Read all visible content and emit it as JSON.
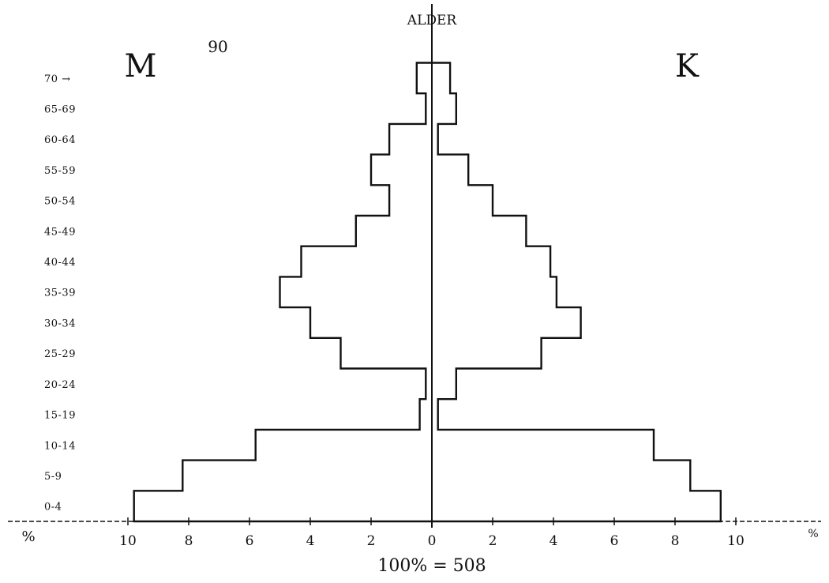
{
  "chart_data": {
    "type": "bar",
    "orientation": "horizontal",
    "title": "90",
    "axis_title": "ALDER",
    "left_label": "M",
    "right_label": "K",
    "xlabel": "100% = 508",
    "x_unit_left": "%",
    "x_unit_right": "%",
    "xlim": [
      -10,
      10
    ],
    "x_ticks_left": [
      "10",
      "8",
      "6",
      "4",
      "2"
    ],
    "x_tick_zero": "0",
    "x_ticks_right": [
      "2",
      "4",
      "6",
      "8",
      "10"
    ],
    "categories": [
      "0-4",
      "5-9",
      "10-14",
      "15-19",
      "20-24",
      "25-29",
      "30-34",
      "35-39",
      "40-44",
      "45-49",
      "50-54",
      "55-59",
      "60-64",
      "65-69",
      "70 →"
    ],
    "series": [
      {
        "name": "M",
        "values": [
          9.8,
          8.2,
          5.8,
          0.4,
          0.2,
          3.0,
          4.0,
          5.0,
          4.3,
          2.5,
          1.4,
          2.0,
          1.4,
          0.2,
          0.5
        ]
      },
      {
        "name": "K",
        "values": [
          9.5,
          8.5,
          7.3,
          0.2,
          0.8,
          3.6,
          4.9,
          4.1,
          3.9,
          3.1,
          2.0,
          1.2,
          0.2,
          0.8,
          0.6
        ]
      }
    ]
  }
}
